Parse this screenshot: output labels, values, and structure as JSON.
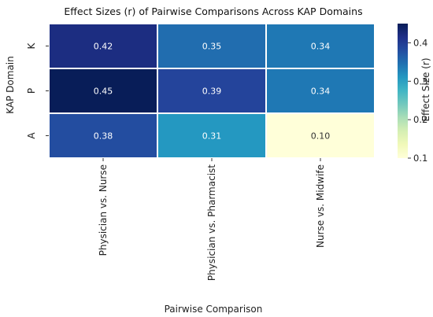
{
  "chart_data": {
    "type": "heatmap",
    "title": "Effect Sizes (r) of Pairwise Comparisons Across KAP Domains",
    "xlabel": "Pairwise Comparison",
    "ylabel": "KAP Domain",
    "rows": [
      "K",
      "P",
      "A"
    ],
    "columns": [
      "Physician vs. Nurse",
      "Physician vs. Pharmacist",
      "Nurse vs. Midwife"
    ],
    "values": [
      [
        0.42,
        0.35,
        0.34
      ],
      [
        0.45,
        0.39,
        0.34
      ],
      [
        0.38,
        0.31,
        0.1
      ]
    ],
    "colorbar": {
      "label": "Effect Size (r)",
      "ticks": [
        "0.1",
        "0.2",
        "0.3",
        "0.4"
      ],
      "range": [
        0.1,
        0.45
      ],
      "colormap": "YlGnBu"
    }
  }
}
